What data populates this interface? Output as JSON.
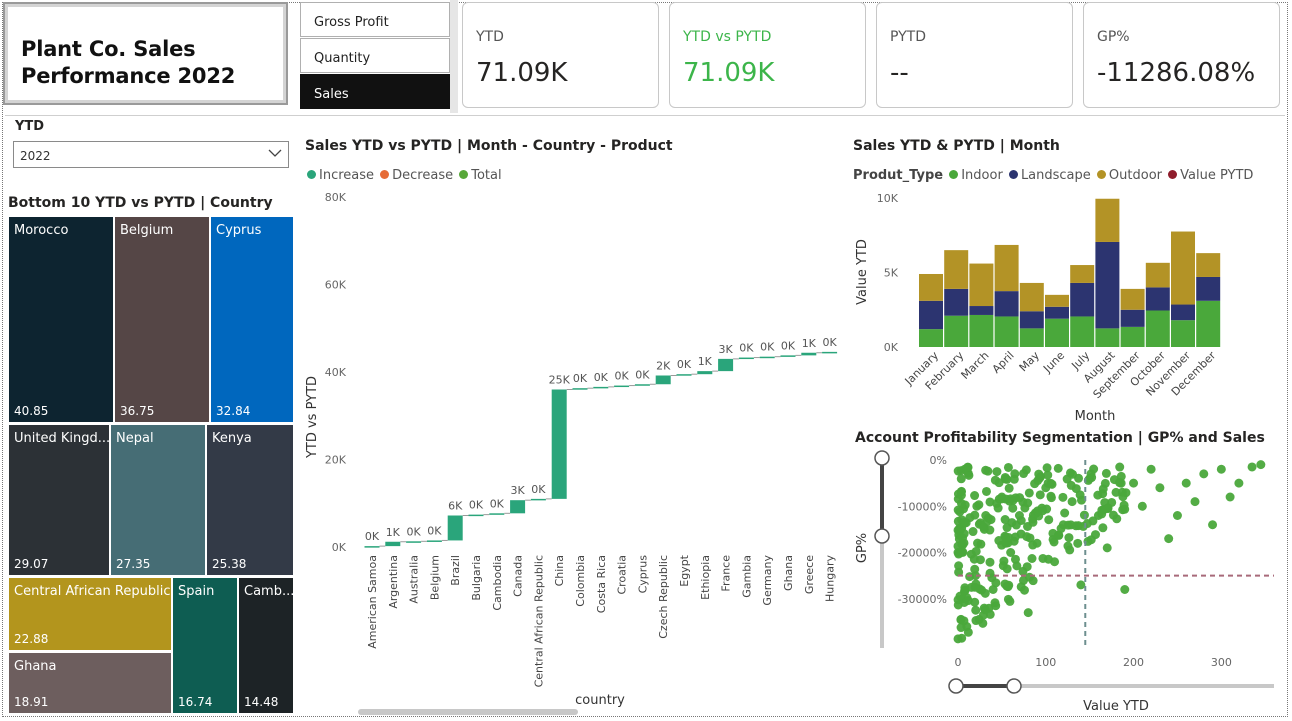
{
  "title": {
    "line1": "Plant Co. Sales",
    "line2": "Performance 2022"
  },
  "metric_buttons": [
    {
      "label": "Gross Profit",
      "active": false
    },
    {
      "label": "Quantity",
      "active": false
    },
    {
      "label": "Sales",
      "active": true
    }
  ],
  "kpis": [
    {
      "label": "YTD",
      "value": "71.09K"
    },
    {
      "label": "YTD vs PYTD",
      "value": "71.09K"
    },
    {
      "label": "PYTD",
      "value": "--"
    },
    {
      "label": "GP%",
      "value": "-11286.08%"
    }
  ],
  "slicer": {
    "label": "YTD",
    "value": "2022"
  },
  "treemap": {
    "title": "Bottom 10 YTD vs PYTD | Country",
    "tiles": [
      {
        "name": "Morocco",
        "value": "40.85",
        "color": "#0d2430"
      },
      {
        "name": "Belgium",
        "value": "36.75",
        "color": "#554646"
      },
      {
        "name": "Cyprus",
        "value": "32.84",
        "color": "#0067be"
      },
      {
        "name": "United Kingd...",
        "value": "29.07",
        "color": "#2c3136"
      },
      {
        "name": "Nepal",
        "value": "27.35",
        "color": "#466d75"
      },
      {
        "name": "Kenya",
        "value": "25.38",
        "color": "#333a47"
      },
      {
        "name": "Central African Republic",
        "value": "22.88",
        "color": "#b3951d"
      },
      {
        "name": "Spain",
        "value": "16.74",
        "color": "#0e5d52"
      },
      {
        "name": "Camb...",
        "value": "14.48",
        "color": "#1d2326"
      },
      {
        "name": "Ghana",
        "value": "18.91",
        "color": "#6d5e5e"
      }
    ]
  },
  "waterfall": {
    "title": "Sales YTD vs PYTD | Month - Country - Product",
    "legend": [
      {
        "label": "Increase",
        "color": "#2aa57b"
      },
      {
        "label": "Decrease",
        "color": "#e66c37"
      },
      {
        "label": "Total",
        "color": "#58a83a"
      }
    ],
    "ylabel": "YTD vs PYTD",
    "xlabel": "country"
  },
  "stacked": {
    "title": "Sales YTD & PYTD | Month",
    "legend_title": "Produt_Type",
    "legend": [
      {
        "label": "Indoor",
        "color": "#4aa83b"
      },
      {
        "label": "Landscape",
        "color": "#2c3470"
      },
      {
        "label": "Outdoor",
        "color": "#b39326"
      },
      {
        "label": "Value PYTD",
        "color": "#8f1d2c"
      }
    ],
    "ylabel": "Value YTD",
    "xlabel": "Month"
  },
  "scatter": {
    "title": "Account Profitability Segmentation | GP% and Sales",
    "ylabel": "GP%",
    "xlabel": "Value YTD"
  },
  "chart_data": [
    {
      "type": "bar",
      "subtype": "waterfall",
      "title": "Sales YTD vs PYTD | Month - Country - Product",
      "xlabel": "country",
      "ylabel": "YTD vs PYTD",
      "ylim": [
        0,
        80000
      ],
      "yticks": [
        "0K",
        "20K",
        "40K",
        "60K",
        "80K"
      ],
      "categories": [
        "American Samoa",
        "Argentina",
        "Australia",
        "Belgium",
        "Brazil",
        "Bulgaria",
        "Cambodia",
        "Canada",
        "Central African Republic",
        "China",
        "Colombia",
        "Costa Rica",
        "Croatia",
        "Cyprus",
        "Czech Republic",
        "Egypt",
        "Ethiopia",
        "France",
        "Gambia",
        "Germany",
        "Ghana",
        "Greece",
        "Hungary"
      ],
      "values": [
        200,
        1000,
        100,
        200,
        5700,
        200,
        300,
        3000,
        300,
        25000,
        300,
        300,
        300,
        300,
        2000,
        300,
        700,
        2800,
        300,
        200,
        300,
        600,
        200
      ],
      "labels": [
        "0K",
        "1K",
        "0K",
        "0K",
        "6K",
        "0K",
        "0K",
        "3K",
        "0K",
        "25K",
        "0K",
        "0K",
        "0K",
        "0K",
        "2K",
        "0K",
        "1K",
        "3K",
        "0K",
        "0K",
        "0K",
        "1K",
        "0K"
      ],
      "series_legend": [
        "Increase",
        "Decrease",
        "Total"
      ]
    },
    {
      "type": "bar",
      "subtype": "stacked",
      "title": "Sales YTD & PYTD | Month",
      "xlabel": "Month",
      "ylabel": "Value YTD",
      "ylim": [
        0,
        10000
      ],
      "yticks": [
        "0K",
        "5K",
        "10K"
      ],
      "categories": [
        "January",
        "February",
        "March",
        "April",
        "May",
        "June",
        "July",
        "August",
        "September",
        "October",
        "November",
        "December"
      ],
      "series": [
        {
          "name": "Indoor",
          "values": [
            1200,
            2100,
            2150,
            2050,
            1250,
            1900,
            2050,
            1250,
            1350,
            2450,
            1800,
            3100
          ]
        },
        {
          "name": "Landscape",
          "values": [
            1900,
            1800,
            600,
            1700,
            1150,
            800,
            2250,
            5800,
            1150,
            1550,
            1050,
            1600
          ]
        },
        {
          "name": "Outdoor",
          "values": [
            1800,
            2600,
            2850,
            3100,
            1900,
            800,
            1200,
            2900,
            1400,
            1650,
            4900,
            1600
          ]
        },
        {
          "name": "Value PYTD",
          "values": [
            0,
            0,
            0,
            0,
            0,
            0,
            0,
            0,
            0,
            0,
            0,
            0
          ]
        }
      ]
    },
    {
      "type": "scatter",
      "title": "Account Profitability Segmentation | GP% and Sales",
      "xlabel": "Value YTD",
      "ylabel": "GP%",
      "xlim": [
        0,
        360
      ],
      "ylim": [
        -40000,
        0
      ],
      "xticks": [
        "0",
        "100",
        "200",
        "300"
      ],
      "yticks": [
        "0%",
        "-10000%",
        "-20000%",
        "-30000%"
      ],
      "reference_lines": {
        "x_avg": 145,
        "y_avg": -25000
      },
      "points_sample": [
        [
          5,
          -30000
        ],
        [
          10,
          -36000
        ],
        [
          20,
          -25000
        ],
        [
          30,
          -15000
        ],
        [
          40,
          -28000
        ],
        [
          50,
          -8000
        ],
        [
          60,
          -20000
        ],
        [
          70,
          -12000
        ],
        [
          80,
          -33000
        ],
        [
          90,
          -18000
        ],
        [
          100,
          -6000
        ],
        [
          110,
          -22000
        ],
        [
          120,
          -14000
        ],
        [
          130,
          -9000
        ],
        [
          140,
          -27000
        ],
        [
          150,
          -4000
        ],
        [
          160,
          -12000
        ],
        [
          170,
          -19000
        ],
        [
          180,
          -7000
        ],
        [
          190,
          -28000
        ],
        [
          200,
          -5000
        ],
        [
          210,
          -10000
        ],
        [
          220,
          -2000
        ],
        [
          230,
          -6000
        ],
        [
          240,
          -17000
        ],
        [
          250,
          -12000
        ],
        [
          260,
          -5000
        ],
        [
          270,
          -9000
        ],
        [
          280,
          -3000
        ],
        [
          290,
          -14000
        ],
        [
          300,
          -2000
        ],
        [
          310,
          -8000
        ],
        [
          320,
          -5000
        ],
        [
          335,
          -1500
        ],
        [
          345,
          -1000
        ]
      ]
    }
  ]
}
